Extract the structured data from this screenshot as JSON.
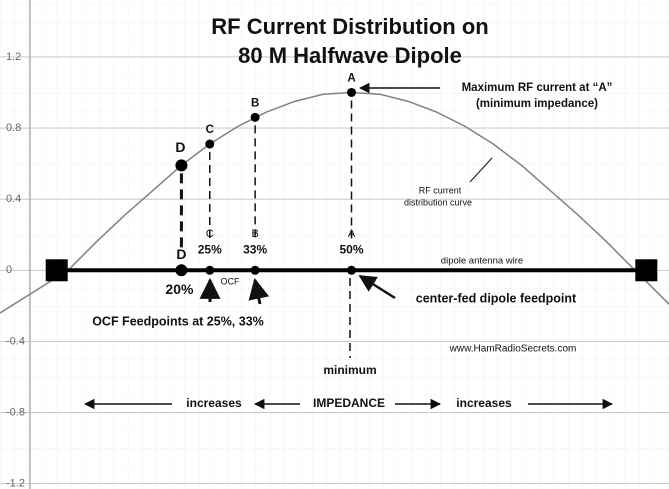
{
  "chart_data": {
    "type": "line",
    "title": [
      "RF Current Distribution on",
      "80 M Halfwave Dipole"
    ],
    "ylim": [
      -1.23,
      1.52
    ],
    "yticks": [
      1.2,
      0.8,
      0.4,
      0,
      -0.4,
      -0.8,
      -1.2
    ],
    "xlim": [
      -12,
      106
    ],
    "grid": true,
    "series": [
      {
        "color": "#808080",
        "x": [
          -12,
          0,
          5,
          10,
          15,
          20,
          25,
          30,
          35,
          40,
          45,
          50,
          55,
          60,
          65,
          70,
          75,
          80,
          85,
          90,
          95,
          100,
          106
        ],
        "values": [
          -0.24,
          0,
          0.16,
          0.31,
          0.45,
          0.59,
          0.71,
          0.81,
          0.89,
          0.95,
          0.99,
          1,
          0.99,
          0.95,
          0.89,
          0.81,
          0.71,
          0.59,
          0.45,
          0.31,
          0.16,
          0,
          -0.19
        ]
      }
    ],
    "points": [
      {
        "label": "D",
        "x": 20,
        "value": 0.59,
        "x_label": "20%"
      },
      {
        "label": "C",
        "x": 25,
        "value": 0.71,
        "x_label": "25%"
      },
      {
        "label": "B",
        "x": 33,
        "value": 0.86,
        "x_label": "33%"
      },
      {
        "label": "A",
        "x": 50,
        "value": 1,
        "x_label": "50%"
      }
    ],
    "wire": {
      "x": [
        -2,
        102
      ],
      "y": 0
    },
    "annotations": {
      "max_current": "Maximum RF current at “A”",
      "min_impedance": "(minimum impedance)",
      "curve_1": "RF current",
      "curve_2": "distribution curve",
      "wire": "dipole antenna wire",
      "ocf": "OCF",
      "center_fed": "center-fed dipole feedpoint",
      "ocf_feedpoints": "OCF Feedpoints at 25%, 33%",
      "website": "www.HamRadioSecrets.com",
      "minimum": "minimum",
      "increases_left": "increases",
      "impedance": "IMPEDANCE",
      "increases_right": "increases"
    }
  }
}
